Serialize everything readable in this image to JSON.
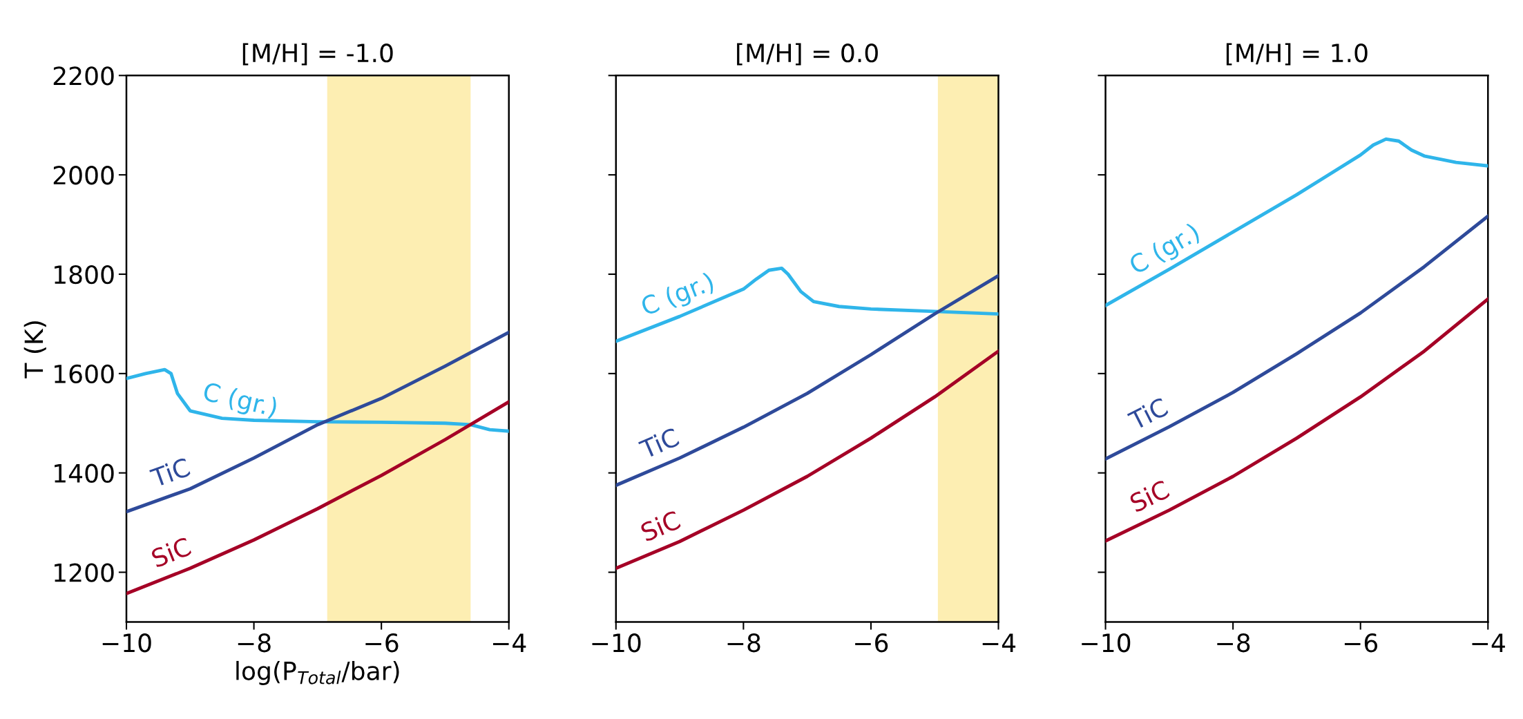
{
  "chart_data": [
    {
      "type": "line",
      "title": "[M/H] = -1.0",
      "xlabel": "log(P$_{Total}$/bar)",
      "ylabel": "T (K)",
      "xlim": [
        -10,
        -4
      ],
      "ylim": [
        1100,
        2200
      ],
      "xticks": [
        {
          "value": -10,
          "label": "−10"
        },
        {
          "value": -8,
          "label": "−8"
        },
        {
          "value": -6,
          "label": "−6"
        },
        {
          "value": -4,
          "label": "−4"
        }
      ],
      "yticks": [
        1200,
        1400,
        1600,
        1800,
        2000,
        2200
      ],
      "grid": false,
      "legend": false,
      "bands": [
        {
          "axis": "x",
          "from": -6.85,
          "to": -4.6,
          "color": "#fdeeb2"
        }
      ],
      "series": [
        {
          "name": "C (gr.)",
          "color": "#2fb5ea",
          "x": [
            -10,
            -9.7,
            -9.4,
            -9.3,
            -9.2,
            -9.0,
            -8.5,
            -8,
            -7,
            -6,
            -5,
            -4.6,
            -4.3,
            -4
          ],
          "values": [
            1590,
            1600,
            1608,
            1600,
            1560,
            1525,
            1510,
            1506,
            1503,
            1502,
            1500,
            1497,
            1487,
            1484
          ]
        },
        {
          "name": "TiC",
          "color": "#2e4a9a",
          "x": [
            -10,
            -9,
            -8,
            -7,
            -6,
            -5,
            -4
          ],
          "values": [
            1322,
            1368,
            1430,
            1497,
            1550,
            1615,
            1683
          ]
        },
        {
          "name": "SiC",
          "color": "#a50026",
          "x": [
            -10,
            -9,
            -8,
            -7,
            -6,
            -5,
            -4
          ],
          "values": [
            1157,
            1208,
            1265,
            1328,
            1395,
            1467,
            1543
          ]
        }
      ]
    },
    {
      "type": "line",
      "title": "[M/H] = 0.0",
      "xlim": [
        -10,
        -4
      ],
      "ylim": [
        1100,
        2200
      ],
      "tick_labels": "x",
      "xticks": [
        {
          "value": -10,
          "label": "−10"
        },
        {
          "value": -8,
          "label": "−8"
        },
        {
          "value": -6,
          "label": "−6"
        },
        {
          "value": -4,
          "label": "−4"
        }
      ],
      "yticks": [
        1200,
        1400,
        1600,
        1800,
        2000,
        2200
      ],
      "grid": false,
      "legend": false,
      "bands": [
        {
          "axis": "x",
          "from": -4.95,
          "to": -4,
          "color": "#fdeeb2"
        }
      ],
      "series": [
        {
          "name": "C (gr.)",
          "color": "#2fb5ea",
          "x": [
            -10,
            -9,
            -8,
            -7.8,
            -7.6,
            -7.4,
            -7.3,
            -7.1,
            -6.9,
            -6.5,
            -6,
            -5,
            -4
          ],
          "values": [
            1665,
            1715,
            1770,
            1790,
            1808,
            1812,
            1800,
            1765,
            1745,
            1735,
            1730,
            1725,
            1720
          ]
        },
        {
          "name": "TiC",
          "color": "#2e4a9a",
          "x": [
            -10,
            -9,
            -8,
            -7,
            -6,
            -5,
            -4
          ],
          "values": [
            1375,
            1430,
            1492,
            1560,
            1638,
            1720,
            1797
          ]
        },
        {
          "name": "SiC",
          "color": "#a50026",
          "x": [
            -10,
            -9,
            -8,
            -7,
            -6,
            -5,
            -4
          ],
          "values": [
            1208,
            1262,
            1325,
            1393,
            1470,
            1553,
            1645
          ]
        }
      ]
    },
    {
      "type": "line",
      "title": "[M/H] = 1.0",
      "xlim": [
        -10,
        -4
      ],
      "ylim": [
        1100,
        2200
      ],
      "tick_labels": "x",
      "xticks": [
        {
          "value": -10,
          "label": "−10"
        },
        {
          "value": -8,
          "label": "−8"
        },
        {
          "value": -6,
          "label": "−6"
        },
        {
          "value": -4,
          "label": "−4"
        }
      ],
      "yticks": [
        1200,
        1400,
        1600,
        1800,
        2000,
        2200
      ],
      "grid": false,
      "legend": false,
      "series": [
        {
          "name": "C (gr.)",
          "color": "#2fb5ea",
          "x": [
            -10,
            -9,
            -8,
            -7,
            -6,
            -5.8,
            -5.6,
            -5.4,
            -5.2,
            -5,
            -4.5,
            -4
          ],
          "values": [
            1737,
            1810,
            1885,
            1960,
            2040,
            2060,
            2072,
            2068,
            2050,
            2038,
            2025,
            2018
          ]
        },
        {
          "name": "TiC",
          "color": "#2e4a9a",
          "x": [
            -10,
            -9,
            -8,
            -7,
            -6,
            -5,
            -4
          ],
          "values": [
            1428,
            1493,
            1562,
            1640,
            1722,
            1815,
            1917
          ]
        },
        {
          "name": "SiC",
          "color": "#a50026",
          "x": [
            -10,
            -9,
            -8,
            -7,
            -6,
            -5,
            -4
          ],
          "values": [
            1263,
            1325,
            1393,
            1470,
            1553,
            1645,
            1750
          ]
        }
      ]
    }
  ]
}
